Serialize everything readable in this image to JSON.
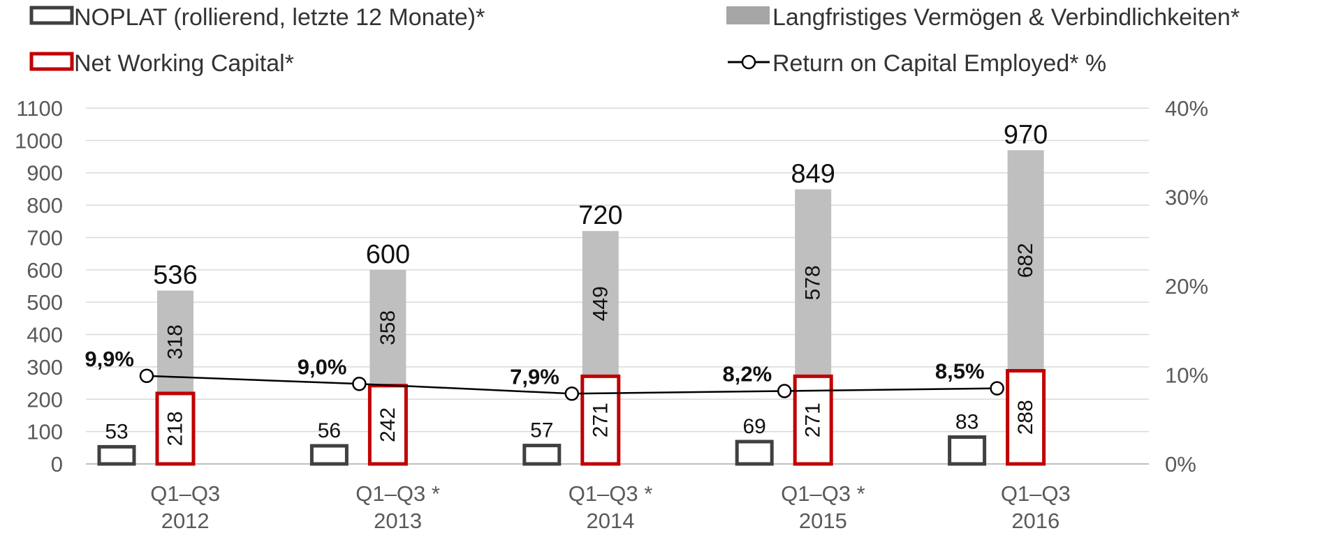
{
  "legend": {
    "noplat": "NOPLAT (rollierend, letzte 12 Monate)*",
    "longterm": "Langfristiges Vermögen & Verbindlichkeiten*",
    "nwc": "Net Working Capital*",
    "roce": "Return on Capital Employed* %"
  },
  "colors": {
    "noplat_border": "#404040",
    "nwc_border": "#c00000",
    "longterm_fill": "#bfbfbf",
    "legend_longterm_fill": "#a6a6a6",
    "roce_line": "#000000",
    "grid": "#d9d9d9",
    "axis_text": "#595959"
  },
  "chart_data": {
    "type": "bar",
    "categories": [
      [
        "Q1–Q3",
        "2012"
      ],
      [
        "Q1–Q3 *",
        "2013"
      ],
      [
        "Q1–Q3 *",
        "2014"
      ],
      [
        "Q1–Q3 *",
        "2015"
      ],
      [
        "Q1–Q3",
        "2016"
      ]
    ],
    "series": [
      {
        "name": "NOPLAT (rollierend, letzte 12 Monate)*",
        "type": "bar",
        "values": [
          53,
          56,
          57,
          69,
          83
        ]
      },
      {
        "name": "Net Working Capital*",
        "type": "stacked-bar",
        "values": [
          218,
          242,
          271,
          271,
          288
        ]
      },
      {
        "name": "Langfristiges Vermögen & Verbindlichkeiten*",
        "type": "stacked-bar",
        "values": [
          318,
          358,
          449,
          578,
          682
        ]
      },
      {
        "name": "Return on Capital Employed* %",
        "type": "line",
        "axis": "right",
        "values": [
          9.9,
          9.0,
          7.9,
          8.2,
          8.5
        ],
        "labels": [
          "9,9%",
          "9,0%",
          "7,9%",
          "8,2%",
          "8,5%"
        ]
      }
    ],
    "stack_totals": [
      536,
      600,
      720,
      849,
      970
    ],
    "y_left": {
      "ticks": [
        0,
        100,
        200,
        300,
        400,
        500,
        600,
        700,
        800,
        900,
        1000,
        1100
      ],
      "range": [
        0,
        1100
      ]
    },
    "y_right": {
      "ticks": [
        "0%",
        "10%",
        "20%",
        "30%",
        "40%"
      ],
      "range": [
        0,
        40
      ]
    },
    "grid": true,
    "legend_position": "top"
  }
}
